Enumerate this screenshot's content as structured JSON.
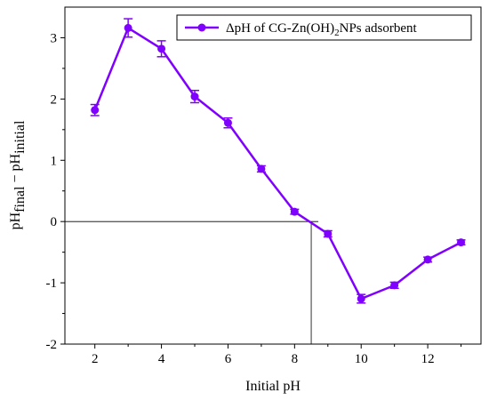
{
  "chart_data": {
    "type": "line",
    "xlabel": "Initial pH",
    "ylabel": {
      "base1": "pH",
      "sub1": "final",
      "minus": " − ",
      "base2": "pH",
      "sub2": "initial"
    },
    "xlim": [
      1.1,
      13.6
    ],
    "ylim": [
      -2.0,
      3.5
    ],
    "xticks": [
      2,
      4,
      6,
      8,
      10,
      12
    ],
    "yticks": [
      -2,
      -1,
      0,
      1,
      2,
      3
    ],
    "xtick_labels": [
      "2",
      "4",
      "6",
      "8",
      "10",
      "12"
    ],
    "ytick_labels": [
      "-2",
      "-1",
      "0",
      "1",
      "2",
      "3"
    ],
    "grid": false,
    "legend_position": "top-right",
    "color": "#8000ff",
    "series": [
      {
        "name": {
          "prefix": "ΔpH of CG-Zn(OH)",
          "sub": "2",
          "suffix": "NPs adsorbent"
        },
        "x": [
          2,
          3,
          4,
          5,
          6,
          7,
          8,
          9,
          10,
          11,
          12,
          13
        ],
        "y": [
          1.82,
          3.16,
          2.82,
          2.04,
          1.61,
          0.86,
          0.16,
          -0.2,
          -1.26,
          -1.04,
          -0.62,
          -0.34
        ],
        "err": [
          0.09,
          0.15,
          0.13,
          0.1,
          0.08,
          0.05,
          0.04,
          0.05,
          0.07,
          0.05,
          0.04,
          0.04
        ]
      }
    ],
    "reference_lines": {
      "zero_crossing_x": 8.5,
      "zero_line_y": 0
    }
  }
}
